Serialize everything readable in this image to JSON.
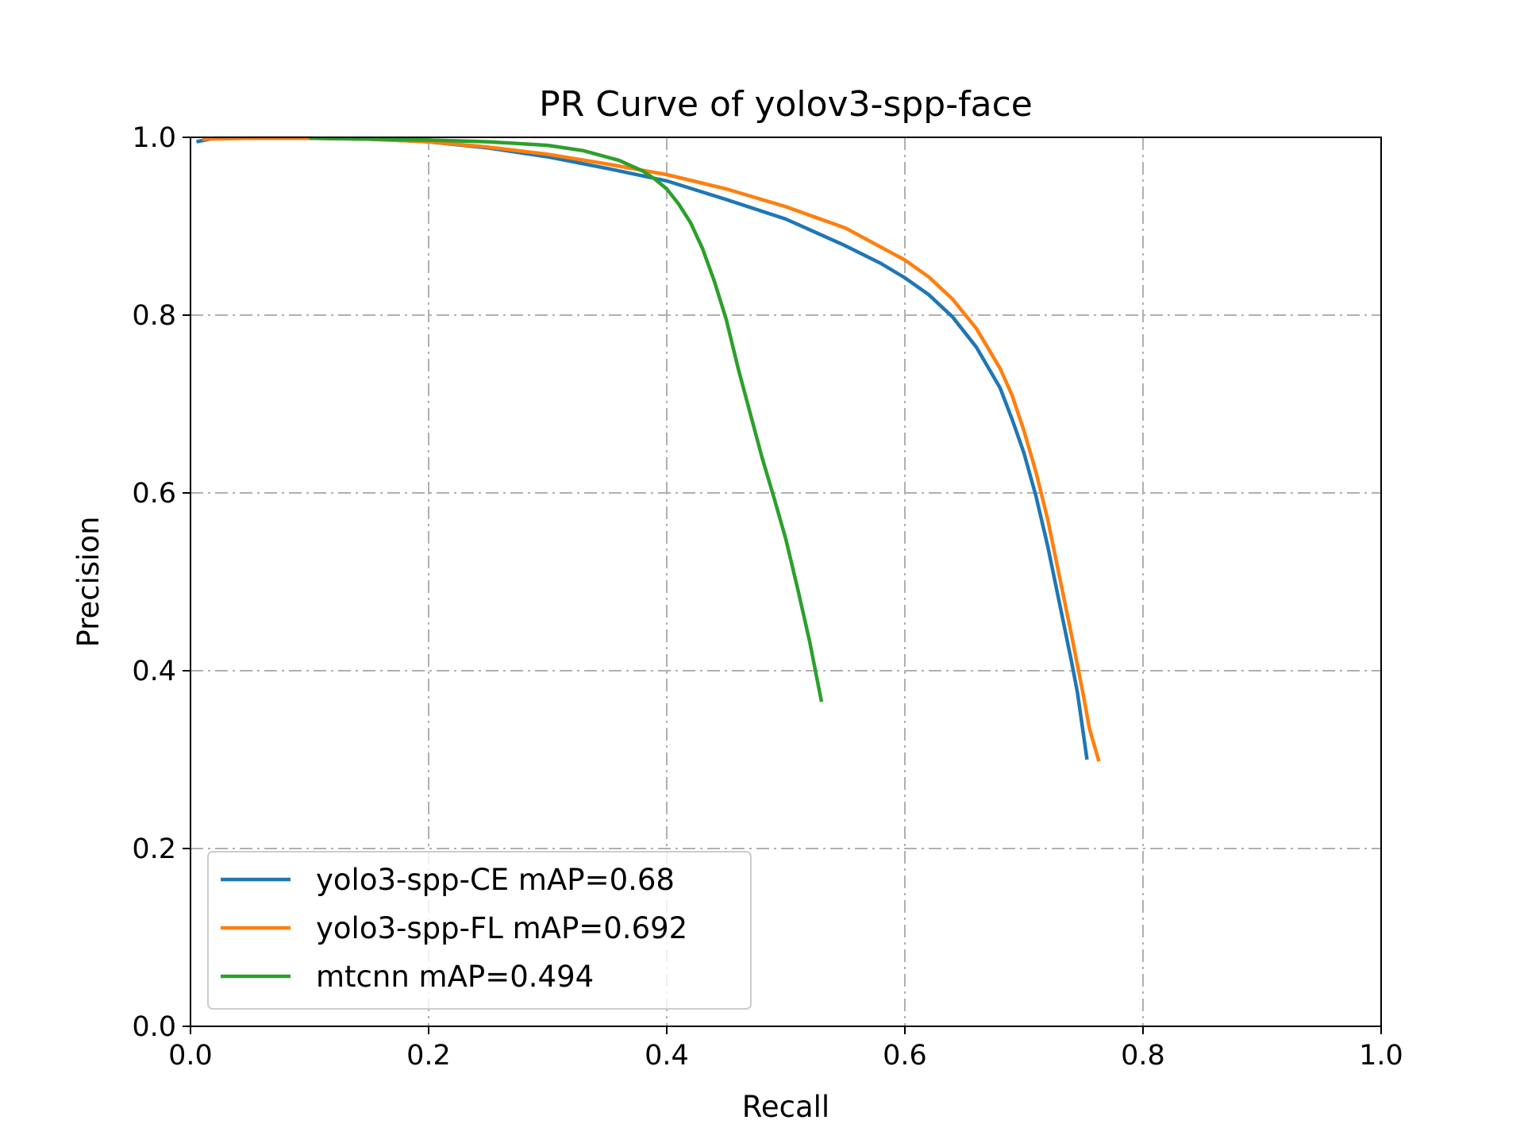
{
  "chart_data": {
    "type": "line",
    "title": "PR Curve of yolov3-spp-face",
    "xlabel": "Recall",
    "ylabel": "Precision",
    "xlim": [
      0.0,
      1.0
    ],
    "ylim": [
      0.0,
      1.0
    ],
    "xticks": [
      "0.0",
      "0.2",
      "0.4",
      "0.6",
      "0.8",
      "1.0"
    ],
    "yticks": [
      "0.0",
      "0.2",
      "0.4",
      "0.6",
      "0.8",
      "1.0"
    ],
    "grid": true,
    "legend_position": "lower-left",
    "series": [
      {
        "name": "yolo3-spp-CE mAP=0.68",
        "color": "#1f77b4",
        "x": [
          0.005,
          0.02,
          0.05,
          0.1,
          0.15,
          0.2,
          0.25,
          0.3,
          0.35,
          0.4,
          0.45,
          0.5,
          0.55,
          0.58,
          0.6,
          0.62,
          0.64,
          0.66,
          0.68,
          0.69,
          0.7,
          0.71,
          0.72,
          0.73,
          0.74,
          0.745,
          0.753
        ],
        "y": [
          0.995,
          0.999,
          0.999,
          0.999,
          0.998,
          0.995,
          0.988,
          0.978,
          0.965,
          0.951,
          0.93,
          0.908,
          0.878,
          0.858,
          0.842,
          0.823,
          0.798,
          0.764,
          0.718,
          0.683,
          0.645,
          0.597,
          0.54,
          0.475,
          0.41,
          0.375,
          0.3
        ]
      },
      {
        "name": "yolo3-spp-FL mAP=0.692",
        "color": "#ff7f0e",
        "x": [
          0.01,
          0.05,
          0.1,
          0.15,
          0.2,
          0.25,
          0.3,
          0.35,
          0.4,
          0.45,
          0.5,
          0.55,
          0.6,
          0.62,
          0.64,
          0.66,
          0.68,
          0.69,
          0.7,
          0.71,
          0.72,
          0.73,
          0.74,
          0.75,
          0.755,
          0.763
        ],
        "y": [
          0.998,
          0.999,
          0.999,
          0.998,
          0.995,
          0.989,
          0.981,
          0.97,
          0.958,
          0.942,
          0.922,
          0.898,
          0.862,
          0.843,
          0.818,
          0.785,
          0.74,
          0.71,
          0.67,
          0.624,
          0.57,
          0.505,
          0.44,
          0.372,
          0.335,
          0.298
        ]
      },
      {
        "name": "mtcnn mAP=0.494",
        "color": "#2ca02c",
        "x": [
          0.1,
          0.2,
          0.25,
          0.3,
          0.33,
          0.36,
          0.38,
          0.39,
          0.4,
          0.41,
          0.42,
          0.43,
          0.44,
          0.45,
          0.46,
          0.47,
          0.48,
          0.49,
          0.5,
          0.51,
          0.52,
          0.53
        ],
        "y": [
          0.999,
          0.997,
          0.995,
          0.991,
          0.985,
          0.974,
          0.962,
          0.953,
          0.942,
          0.925,
          0.904,
          0.875,
          0.838,
          0.795,
          0.74,
          0.69,
          0.64,
          0.595,
          0.548,
          0.492,
          0.433,
          0.365
        ]
      }
    ]
  }
}
